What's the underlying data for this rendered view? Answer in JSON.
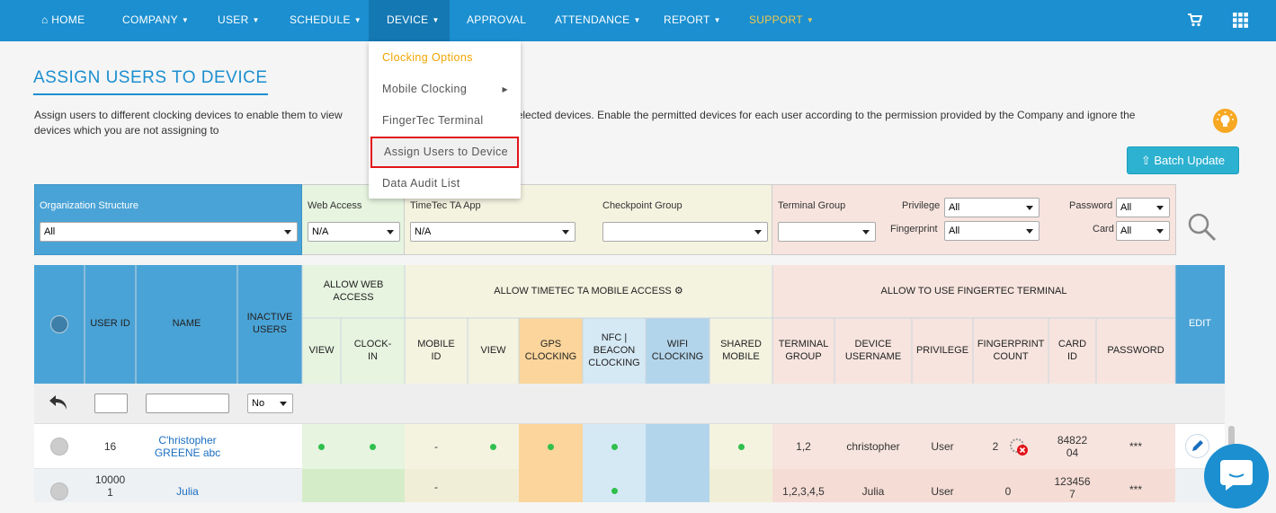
{
  "nav": {
    "home": "HOME",
    "company": "COMPANY",
    "user": "USER",
    "schedule": "SCHEDULE",
    "device": "DEVICE",
    "approval": "APPROVAL",
    "attendance": "ATTENDANCE",
    "report": "REPORT",
    "support": "SUPPORT"
  },
  "dropdown": {
    "items": [
      "Clocking Options",
      "Mobile Clocking",
      "FingerTec Terminal",
      "Assign Users to Device",
      "Data Audit List"
    ]
  },
  "page": {
    "title": "ASSIGN USERS TO DEVICE",
    "description": "Assign users to different clocking devices to enable them to view                                     using those selected devices. Enable the permitted devices for each user according to the permission provided by the Company and ignore the devices which you are not assigning to",
    "batch_update": "Batch Update"
  },
  "filters": {
    "org_label": "Organization Structure",
    "org_value": "All",
    "web_label": "Web Access",
    "web_value": "N/A",
    "app_label": "TimeTec TA App",
    "app_value": "N/A",
    "checkpoint_label": "Checkpoint Group",
    "checkpoint_value": "",
    "terminal_label": "Terminal Group",
    "terminal_value": "",
    "privilege_label": "Privilege",
    "privilege_value": "All",
    "fingerprint_label": "Fingerprint",
    "fingerprint_value": "All",
    "password_label": "Password",
    "password_value": "All",
    "card_label": "Card",
    "card_value": "All"
  },
  "table": {
    "headers": {
      "user_id": "USER ID",
      "name": "NAME",
      "inactive": "INACTIVE USERS",
      "allow_web": "ALLOW WEB ACCESS",
      "allow_mobile": "ALLOW TIMETEC TA MOBILE ACCESS",
      "allow_finger": "ALLOW TO USE FINGERTEC TERMINAL",
      "edit": "EDIT",
      "view": "VIEW",
      "clock_in": "CLOCK-IN",
      "mobile_id": "MOBILE ID",
      "view2": "VIEW",
      "gps": "GPS CLOCKING",
      "nfc": "NFC | BEACON CLOCKING",
      "wifi": "WIFI CLOCKING",
      "shared": "SHARED MOBILE",
      "terminal_group": "TERMINAL GROUP",
      "device_username": "DEVICE USERNAME",
      "privilege": "PRIVILEGE",
      "fp_count": "FINGERPRINT COUNT",
      "card_id": "CARD ID",
      "password": "PASSWORD"
    },
    "inactive_filter": "No",
    "rows": [
      {
        "user_id": "16",
        "name": "C'hristopher GREENE abc",
        "mobile_id": "-",
        "terminal_group": "1,2",
        "device_username": "christopher",
        "privilege": "User",
        "fp_count": "2",
        "card_id": "84822 04",
        "password": "***"
      },
      {
        "user_id": "10000 1",
        "name": "Julia",
        "mobile_id": "-",
        "terminal_group": "1,2,3,4,5",
        "device_username": "Julia",
        "privilege": "User",
        "fp_count": "0",
        "card_id": "123456 7",
        "password": "***"
      }
    ]
  },
  "colors": {
    "nav": "#1b8fd0",
    "accent": "#1b8fd0",
    "support": "#f2c94c",
    "highlight_border": "#e2141a"
  }
}
